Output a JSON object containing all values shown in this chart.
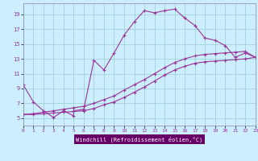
{
  "xlabel": "Windchill (Refroidissement éolien,°C)",
  "background_color": "#cceeff",
  "grid_color": "#99cccc",
  "line_color": "#993399",
  "xlabel_bg": "#660066",
  "xlabel_fg": "#ffffff",
  "x_min": 0,
  "x_max": 23,
  "y_min": 4,
  "y_max": 20.5,
  "yticks": [
    5,
    7,
    9,
    11,
    13,
    15,
    17,
    19
  ],
  "xticks": [
    0,
    1,
    2,
    3,
    4,
    5,
    6,
    7,
    8,
    9,
    10,
    11,
    12,
    13,
    14,
    15,
    16,
    17,
    18,
    19,
    20,
    21,
    22,
    23
  ],
  "curve1_x": [
    0,
    1,
    2,
    3,
    4,
    5,
    5,
    6,
    7,
    8,
    9,
    10,
    11,
    12,
    13,
    14,
    15,
    16,
    17,
    18,
    19,
    20,
    21,
    22,
    23
  ],
  "curve1_y": [
    9.5,
    7.2,
    6.0,
    5.1,
    6.0,
    5.3,
    6.0,
    6.2,
    12.8,
    11.5,
    13.8,
    16.2,
    18.0,
    19.5,
    19.2,
    19.5,
    19.7,
    18.5,
    17.5,
    15.8,
    15.5,
    14.8,
    13.2,
    13.8,
    13.2
  ],
  "curve2_x": [
    0,
    1,
    2,
    3,
    4,
    5,
    6,
    7,
    8,
    9,
    10,
    11,
    12,
    13,
    14,
    15,
    16,
    17,
    18,
    19,
    20,
    21,
    22,
    23
  ],
  "curve2_y": [
    5.5,
    5.6,
    5.8,
    6.0,
    6.2,
    6.4,
    6.6,
    7.0,
    7.5,
    8.0,
    8.8,
    9.5,
    10.2,
    11.0,
    11.8,
    12.5,
    13.0,
    13.4,
    13.6,
    13.7,
    13.8,
    13.9,
    14.0,
    13.2
  ],
  "curve3_x": [
    0,
    1,
    2,
    3,
    4,
    5,
    6,
    7,
    8,
    9,
    10,
    11,
    12,
    13,
    14,
    15,
    16,
    17,
    18,
    19,
    20,
    21,
    22,
    23
  ],
  "curve3_y": [
    5.5,
    5.5,
    5.6,
    5.7,
    5.8,
    5.9,
    6.0,
    6.3,
    6.8,
    7.2,
    7.8,
    8.5,
    9.2,
    10.0,
    10.8,
    11.5,
    12.0,
    12.4,
    12.6,
    12.7,
    12.8,
    12.9,
    13.0,
    13.2
  ]
}
